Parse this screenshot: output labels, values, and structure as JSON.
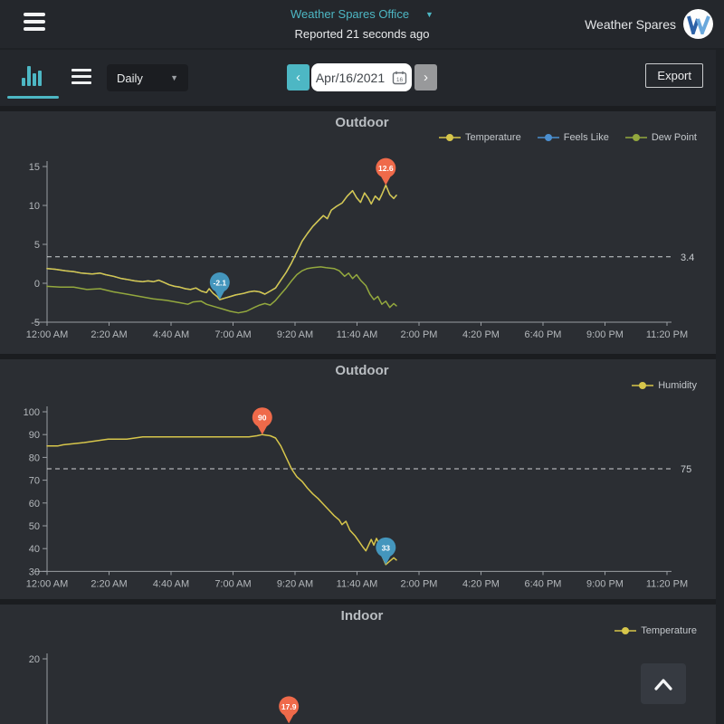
{
  "header": {
    "station_selector": {
      "value": "Weather Spares Office",
      "caret": "▼"
    },
    "reported_status": "Reported 21 seconds ago",
    "brand": {
      "name": "Weather Spares",
      "logo_letter": "W"
    }
  },
  "toolbar": {
    "range_select": {
      "value": "Daily",
      "caret": "▼"
    },
    "date_nav": {
      "prev": "‹",
      "date_value": "Apr/16/2021",
      "calendar_day": "16",
      "next": "›"
    },
    "export_label": "Export"
  },
  "colors": {
    "teal_accent": "#4db7c4",
    "temperature_yellow": "#d7c64b",
    "feels_like_blue": "#4b8fd0",
    "dew_point_green": "#93a83e",
    "humidity_yellow": "#d7c64b",
    "max_marker_orange": "#ef6a4a",
    "min_marker_blue": "#4496bd",
    "panel_bg": "#2b2e33",
    "header_bg": "#24272c"
  },
  "chart_data": [
    {
      "type": "line",
      "title": "Outdoor",
      "x_tick_labels": [
        "12:00 AM",
        "2:20 AM",
        "4:40 AM",
        "7:00 AM",
        "9:20 AM",
        "11:40 AM",
        "2:00 PM",
        "4:20 PM",
        "6:40 PM",
        "9:00 PM",
        "11:20 PM"
      ],
      "y_ticks": [
        15,
        10,
        5,
        0,
        -5
      ],
      "y_range": [
        -5,
        15
      ],
      "x_axis_visible": true,
      "ref_line": {
        "value": 3.4,
        "label": "3.4"
      },
      "legend_position": "top-right",
      "series": [
        {
          "name": "Temperature",
          "color": "#d7c64b",
          "draw_order": 3,
          "points": [
            [
              0,
              1.9
            ],
            [
              0.3,
              1.8
            ],
            [
              0.7,
              1.6
            ],
            [
              1,
              1.5
            ],
            [
              1.3,
              1.3
            ],
            [
              1.7,
              1.2
            ],
            [
              2,
              1.3
            ],
            [
              2.2,
              1.1
            ],
            [
              2.5,
              0.9
            ],
            [
              2.8,
              0.6
            ],
            [
              3,
              0.5
            ],
            [
              3.3,
              0.3
            ],
            [
              3.6,
              0.2
            ],
            [
              3.8,
              0.3
            ],
            [
              4,
              0.2
            ],
            [
              4.2,
              0.4
            ],
            [
              4.4,
              0.1
            ],
            [
              4.6,
              -0.2
            ],
            [
              4.8,
              -0.4
            ],
            [
              5,
              -0.5
            ],
            [
              5.2,
              -0.7
            ],
            [
              5.4,
              -0.8
            ],
            [
              5.6,
              -0.6
            ],
            [
              5.8,
              -1.0
            ],
            [
              6,
              -1.2
            ],
            [
              6.1,
              -0.7
            ],
            [
              6.25,
              -1.3
            ],
            [
              6.4,
              -1.7
            ],
            [
              6.5,
              -2.1
            ],
            [
              6.7,
              -1.9
            ],
            [
              6.9,
              -1.7
            ],
            [
              7.1,
              -1.5
            ],
            [
              7.4,
              -1.3
            ],
            [
              7.6,
              -1.1
            ],
            [
              7.8,
              -1.0
            ],
            [
              8,
              -1.1
            ],
            [
              8.2,
              -1.4
            ],
            [
              8.4,
              -1.0
            ],
            [
              8.6,
              -0.6
            ],
            [
              8.8,
              0.4
            ],
            [
              9,
              1.4
            ],
            [
              9.2,
              2.6
            ],
            [
              9.4,
              4.0
            ],
            [
              9.6,
              5.4
            ],
            [
              9.8,
              6.4
            ],
            [
              10,
              7.3
            ],
            [
              10.2,
              8.0
            ],
            [
              10.4,
              8.7
            ],
            [
              10.55,
              8.3
            ],
            [
              10.7,
              9.4
            ],
            [
              10.9,
              9.9
            ],
            [
              11.1,
              10.3
            ],
            [
              11.3,
              11.2
            ],
            [
              11.5,
              11.9
            ],
            [
              11.65,
              11.0
            ],
            [
              11.8,
              10.4
            ],
            [
              11.95,
              11.6
            ],
            [
              12.1,
              10.9
            ],
            [
              12.2,
              10.2
            ],
            [
              12.35,
              11.2
            ],
            [
              12.5,
              10.7
            ],
            [
              12.6,
              11.4
            ],
            [
              12.75,
              12.6
            ],
            [
              12.9,
              11.4
            ],
            [
              13.05,
              10.9
            ],
            [
              13.15,
              11.3
            ]
          ]
        },
        {
          "name": "Feels Like",
          "color": "#4b8fd0",
          "draw_order": 1,
          "points_same_as": "Temperature"
        },
        {
          "name": "Dew Point",
          "color": "#93a83e",
          "draw_order": 2,
          "points": [
            [
              0,
              -0.4
            ],
            [
              0.5,
              -0.5
            ],
            [
              1,
              -0.5
            ],
            [
              1.5,
              -0.8
            ],
            [
              2,
              -0.7
            ],
            [
              2.5,
              -1.1
            ],
            [
              3,
              -1.4
            ],
            [
              3.5,
              -1.7
            ],
            [
              4,
              -2.0
            ],
            [
              4.5,
              -2.2
            ],
            [
              5,
              -2.5
            ],
            [
              5.3,
              -2.7
            ],
            [
              5.5,
              -2.4
            ],
            [
              5.8,
              -2.3
            ],
            [
              6,
              -2.7
            ],
            [
              6.3,
              -3.0
            ],
            [
              6.6,
              -3.3
            ],
            [
              6.9,
              -3.6
            ],
            [
              7.2,
              -3.8
            ],
            [
              7.5,
              -3.6
            ],
            [
              7.8,
              -3.1
            ],
            [
              8,
              -2.8
            ],
            [
              8.2,
              -2.6
            ],
            [
              8.4,
              -2.8
            ],
            [
              8.6,
              -2.2
            ],
            [
              8.8,
              -1.4
            ],
            [
              9,
              -0.6
            ],
            [
              9.2,
              0.3
            ],
            [
              9.4,
              1.1
            ],
            [
              9.6,
              1.6
            ],
            [
              9.8,
              1.9
            ],
            [
              10,
              2.0
            ],
            [
              10.3,
              2.1
            ],
            [
              10.5,
              2.0
            ],
            [
              10.8,
              1.9
            ],
            [
              11,
              1.6
            ],
            [
              11.2,
              0.9
            ],
            [
              11.35,
              1.3
            ],
            [
              11.5,
              0.6
            ],
            [
              11.65,
              1.1
            ],
            [
              11.8,
              0.4
            ],
            [
              12,
              -0.3
            ],
            [
              12.15,
              -1.4
            ],
            [
              12.3,
              -2.1
            ],
            [
              12.45,
              -1.7
            ],
            [
              12.6,
              -2.7
            ],
            [
              12.75,
              -2.3
            ],
            [
              12.9,
              -3.1
            ],
            [
              13.05,
              -2.6
            ],
            [
              13.15,
              -2.9
            ]
          ]
        }
      ],
      "markers": [
        {
          "kind": "min",
          "t": 6.5,
          "value": -2.1,
          "label": "-2.1",
          "color": "#4496bd"
        },
        {
          "kind": "max",
          "t": 12.75,
          "value": 12.6,
          "label": "12.6",
          "color": "#ef6a4a"
        }
      ]
    },
    {
      "type": "line",
      "title": "Outdoor",
      "x_tick_labels": [
        "12:00 AM",
        "2:20 AM",
        "4:40 AM",
        "7:00 AM",
        "9:20 AM",
        "11:40 AM",
        "2:00 PM",
        "4:20 PM",
        "6:40 PM",
        "9:00 PM",
        "11:20 PM"
      ],
      "y_ticks": [
        100,
        90,
        80,
        70,
        60,
        50,
        40,
        30
      ],
      "y_range": [
        30,
        100
      ],
      "x_axis_visible": true,
      "ref_line": {
        "value": 75,
        "label": "75"
      },
      "legend_position": "top-right",
      "series": [
        {
          "name": "Humidity",
          "color": "#d7c64b",
          "draw_order": 1,
          "points": [
            [
              0,
              85
            ],
            [
              0.4,
              85
            ],
            [
              0.6,
              85.5
            ],
            [
              1,
              86
            ],
            [
              1.4,
              86.5
            ],
            [
              1.7,
              87
            ],
            [
              2,
              87.5
            ],
            [
              2.3,
              88
            ],
            [
              3,
              88
            ],
            [
              3.3,
              88.5
            ],
            [
              3.6,
              89
            ],
            [
              7.6,
              89
            ],
            [
              7.9,
              89.5
            ],
            [
              8.1,
              90
            ],
            [
              8.4,
              89.5
            ],
            [
              8.6,
              88.5
            ],
            [
              8.8,
              85
            ],
            [
              9,
              80
            ],
            [
              9.2,
              75
            ],
            [
              9.4,
              71.5
            ],
            [
              9.6,
              69.5
            ],
            [
              9.8,
              66.5
            ],
            [
              10,
              64
            ],
            [
              10.2,
              62
            ],
            [
              10.4,
              59.5
            ],
            [
              10.6,
              57
            ],
            [
              10.8,
              54.5
            ],
            [
              11,
              52.5
            ],
            [
              11.1,
              50.5
            ],
            [
              11.25,
              52
            ],
            [
              11.4,
              48
            ],
            [
              11.6,
              45.5
            ],
            [
              11.75,
              43
            ],
            [
              11.9,
              40.5
            ],
            [
              12,
              39
            ],
            [
              12.1,
              41.5
            ],
            [
              12.2,
              44
            ],
            [
              12.3,
              41.5
            ],
            [
              12.4,
              44.5
            ],
            [
              12.5,
              42
            ],
            [
              12.6,
              37
            ],
            [
              12.75,
              33
            ],
            [
              12.9,
              34.5
            ],
            [
              13.05,
              36
            ],
            [
              13.15,
              35
            ]
          ]
        }
      ],
      "markers": [
        {
          "kind": "max",
          "t": 8.1,
          "value": 90,
          "label": "90",
          "color": "#ef6a4a"
        },
        {
          "kind": "min",
          "t": 12.75,
          "value": 33,
          "label": "33",
          "color": "#4496bd"
        }
      ]
    },
    {
      "type": "line",
      "title": "Indoor",
      "x_tick_labels": [],
      "y_ticks": [
        20
      ],
      "y_range": [
        10,
        20
      ],
      "x_axis_visible": false,
      "ref_line": null,
      "legend_position": "top-right",
      "series": [
        {
          "name": "Temperature",
          "color": "#d7c64b",
          "draw_order": 1,
          "points": []
        }
      ],
      "markers": [
        {
          "kind": "max",
          "t": 9.1,
          "value": 17.9,
          "label": "17.9",
          "color": "#ef6a4a"
        }
      ]
    }
  ]
}
